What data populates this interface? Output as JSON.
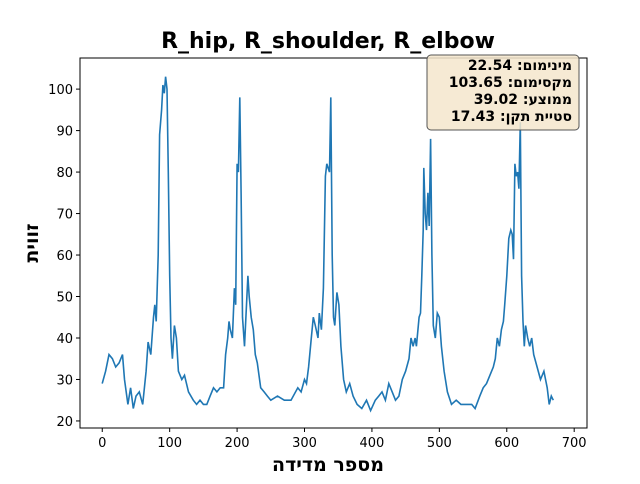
{
  "chart_data": {
    "type": "line",
    "title": "R_hip, R_shoulder, R_elbow",
    "x_label": "מספר מדידה",
    "y_label": "זווית",
    "annotations": [
      "מינימום: 22.54",
      "מקסימום: 103.65",
      "ממוצע: 39.02",
      "סטיית תקן: 17.43"
    ],
    "x": [
      0,
      5,
      10,
      15,
      20,
      25,
      30,
      33,
      38,
      42,
      46,
      50,
      55,
      60,
      65,
      68,
      72,
      76,
      78,
      80,
      83,
      85,
      88,
      90,
      92,
      94,
      96,
      98,
      100,
      102,
      104,
      107,
      110,
      113,
      118,
      122,
      128,
      135,
      140,
      145,
      150,
      155,
      160,
      165,
      170,
      175,
      180,
      183,
      186,
      188,
      190,
      193,
      196,
      198,
      200,
      202,
      204,
      206,
      208,
      211,
      214,
      216,
      218,
      221,
      224,
      227,
      230,
      235,
      240,
      245,
      250,
      260,
      270,
      280,
      290,
      295,
      300,
      303,
      306,
      310,
      313,
      316,
      320,
      322,
      325,
      328,
      331,
      333,
      335,
      337,
      339,
      341,
      343,
      345,
      348,
      351,
      354,
      358,
      362,
      367,
      372,
      378,
      385,
      392,
      398,
      405,
      410,
      415,
      420,
      425,
      430,
      435,
      440,
      445,
      450,
      455,
      458,
      461,
      464,
      466,
      470,
      472,
      474,
      476,
      477,
      479,
      481,
      483,
      485,
      487,
      489,
      491,
      494,
      497,
      500,
      503,
      507,
      512,
      518,
      525,
      532,
      540,
      548,
      553,
      560,
      565,
      570,
      575,
      580,
      583,
      586,
      589,
      592,
      595,
      597,
      600,
      603,
      606,
      608,
      610,
      612,
      614,
      616,
      618,
      620,
      622,
      624,
      626,
      628,
      631,
      634,
      637,
      640,
      645,
      650,
      655,
      660,
      663,
      666,
      669
    ],
    "series": [
      {
        "name": "R_hip, R_shoulder, R_elbow",
        "color": "#1f77b4",
        "values": [
          29,
          32,
          36,
          35,
          33,
          34,
          36,
          30,
          24,
          28,
          23,
          26,
          27,
          24,
          32,
          39,
          36,
          45,
          48,
          44,
          60,
          89,
          95,
          101,
          99,
          103,
          100,
          80,
          55,
          40,
          35,
          43,
          40,
          32,
          30,
          31,
          27,
          25,
          24,
          25,
          24,
          24,
          26,
          28,
          27,
          28,
          28,
          36,
          40,
          44,
          42,
          40,
          52,
          48,
          82,
          80,
          98,
          75,
          45,
          38,
          48,
          55,
          50,
          45,
          42,
          36,
          34,
          28,
          27,
          26,
          25,
          26,
          25,
          25,
          28,
          27,
          30,
          29,
          33,
          40,
          45,
          43,
          40,
          46,
          42,
          52,
          79,
          82,
          81,
          80,
          98,
          60,
          45,
          43,
          51,
          48,
          38,
          30,
          27,
          29,
          26,
          24,
          23,
          25,
          22.5,
          25,
          26,
          27,
          25,
          29,
          27,
          25,
          26,
          30,
          32,
          35,
          40,
          38,
          40,
          38,
          45,
          46,
          55,
          66,
          81,
          70,
          66,
          75,
          67,
          88,
          60,
          43,
          40,
          46,
          45,
          38,
          32,
          27,
          24,
          25,
          24,
          24,
          24,
          23,
          26,
          28,
          29,
          31,
          33,
          35,
          40,
          38,
          42,
          44,
          48,
          55,
          64,
          66,
          65,
          59,
          82,
          79,
          80,
          76,
          92,
          55,
          44,
          38,
          43,
          40,
          38,
          40,
          36,
          33,
          30,
          32,
          28,
          24,
          26,
          25
        ]
      }
    ],
    "xlim": [
      -33,
      719
    ],
    "ylim": [
      18.3,
      107.5
    ],
    "xticks": [
      0,
      100,
      200,
      300,
      400,
      500,
      600,
      700
    ],
    "yticks": [
      20,
      30,
      40,
      50,
      60,
      70,
      80,
      90,
      100
    ]
  }
}
